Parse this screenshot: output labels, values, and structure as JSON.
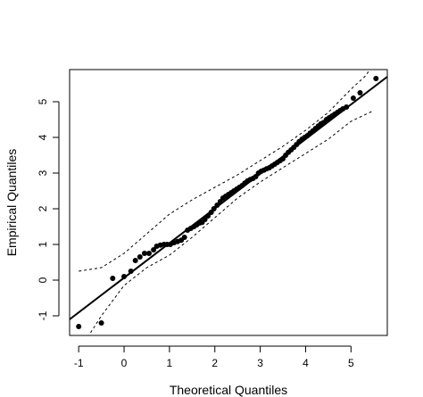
{
  "chart_data": {
    "type": "scatter",
    "title": "",
    "xlabel": "Theoretical Quantiles",
    "ylabel": "Empirical Quantiles",
    "xlim": [
      -1.2,
      5.8
    ],
    "ylim": [
      -1.55,
      5.9
    ],
    "x_ticks": [
      -1,
      0,
      1,
      2,
      3,
      4,
      5
    ],
    "y_ticks": [
      -1,
      0,
      1,
      2,
      3,
      4,
      5
    ],
    "x_tick_labels": [
      "-1",
      "0",
      "1",
      "2",
      "3",
      "4",
      "5"
    ],
    "y_tick_labels": [
      "-1",
      "0",
      "1",
      "2",
      "3",
      "4",
      "5"
    ],
    "grid": false,
    "reference_line": {
      "x": [
        -1.2,
        5.8
      ],
      "y": [
        -1.1,
        5.7
      ]
    },
    "confidence_band_upper": {
      "x": [
        -1.0,
        -0.5,
        0.0,
        0.5,
        1.0,
        1.5,
        2.0,
        2.5,
        3.0,
        3.5,
        4.0,
        4.5,
        5.0,
        5.3,
        5.6
      ],
      "y": [
        0.25,
        0.35,
        0.75,
        1.3,
        1.85,
        2.25,
        2.6,
        2.95,
        3.35,
        3.75,
        4.2,
        4.7,
        5.35,
        5.7,
        6.2
      ]
    },
    "confidence_band_lower": {
      "x": [
        -0.8,
        -0.5,
        0.0,
        0.5,
        1.0,
        1.5,
        2.0,
        2.5,
        3.0,
        3.5,
        4.0,
        4.5,
        5.0,
        5.5
      ],
      "y": [
        -1.6,
        -1.0,
        -0.15,
        0.35,
        0.7,
        1.2,
        1.75,
        2.3,
        2.75,
        3.15,
        3.55,
        3.95,
        4.45,
        4.75
      ]
    },
    "points": {
      "x": [
        -1.0,
        -0.5,
        -0.25,
        0.0,
        0.15,
        0.25,
        0.35,
        0.45,
        0.55,
        0.65,
        0.72,
        0.8,
        0.88,
        0.95,
        1.02,
        1.1,
        1.18,
        1.26,
        1.33,
        1.4,
        1.47,
        1.54,
        1.6,
        1.66,
        1.72,
        1.78,
        1.85,
        1.92,
        1.98,
        2.05,
        2.12,
        2.18,
        2.24,
        2.3,
        2.36,
        2.42,
        2.48,
        2.54,
        2.6,
        2.66,
        2.72,
        2.78,
        2.84,
        2.9,
        2.96,
        3.02,
        3.08,
        3.14,
        3.2,
        3.26,
        3.32,
        3.38,
        3.44,
        3.5,
        3.56,
        3.62,
        3.68,
        3.74,
        3.8,
        3.86,
        3.92,
        3.98,
        4.04,
        4.1,
        4.16,
        4.22,
        4.28,
        4.34,
        4.4,
        4.46,
        4.52,
        4.58,
        4.64,
        4.7,
        4.76,
        4.82,
        4.9,
        5.05,
        5.2,
        5.55
      ],
      "y": [
        -1.3,
        -1.2,
        0.05,
        0.1,
        0.25,
        0.55,
        0.65,
        0.75,
        0.75,
        0.85,
        0.95,
        0.98,
        1.0,
        1.0,
        1.0,
        1.05,
        1.08,
        1.12,
        1.2,
        1.4,
        1.45,
        1.5,
        1.55,
        1.6,
        1.62,
        1.7,
        1.8,
        1.9,
        2.0,
        2.1,
        2.2,
        2.3,
        2.35,
        2.4,
        2.45,
        2.5,
        2.55,
        2.6,
        2.65,
        2.72,
        2.78,
        2.82,
        2.85,
        2.9,
        3.0,
        3.05,
        3.08,
        3.12,
        3.15,
        3.2,
        3.25,
        3.3,
        3.35,
        3.4,
        3.5,
        3.58,
        3.65,
        3.72,
        3.8,
        3.88,
        3.95,
        4.0,
        4.05,
        4.12,
        4.18,
        4.25,
        4.32,
        4.38,
        4.42,
        4.5,
        4.55,
        4.6,
        4.65,
        4.7,
        4.75,
        4.8,
        4.85,
        5.1,
        5.25,
        5.65
      ]
    }
  }
}
